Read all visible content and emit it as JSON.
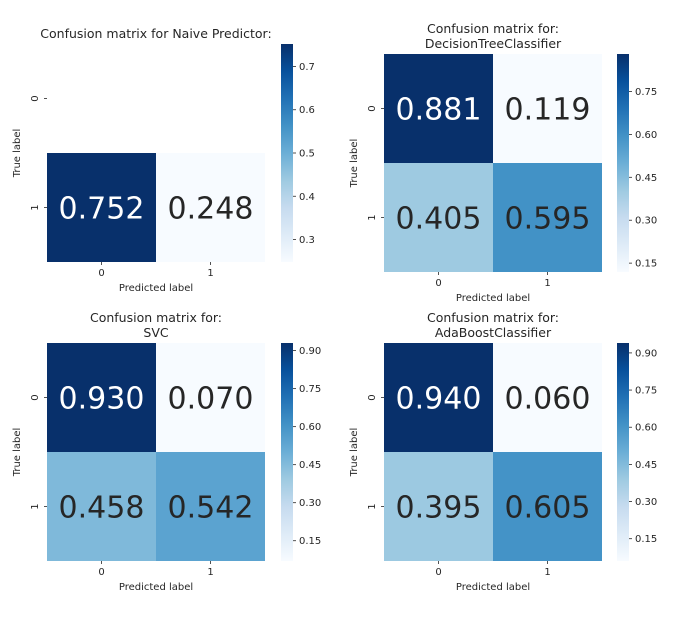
{
  "chart_data": [
    {
      "type": "heatmap",
      "title": "Confusion matrix for Naive Predictor:",
      "xlabel": "Predicted label",
      "ylabel": "True label",
      "x_ticks": [
        "0",
        "1"
      ],
      "y_ticks": [
        "0",
        "1"
      ],
      "cells": [
        [
          null,
          null
        ],
        [
          "0.752",
          "0.248"
        ]
      ],
      "values": [
        [
          null,
          null
        ],
        [
          0.752,
          0.248
        ]
      ],
      "colorbar": {
        "min": 0.248,
        "max": 0.752,
        "ticks": [
          "0.7",
          "0.6",
          "0.5",
          "0.4",
          "0.3"
        ],
        "tick_values": [
          0.7,
          0.6,
          0.5,
          0.4,
          0.3
        ]
      },
      "colormap": "Blues"
    },
    {
      "type": "heatmap",
      "title": "Confusion matrix for:\nDecisionTreeClassifier",
      "xlabel": "Predicted label",
      "ylabel": "True label",
      "x_ticks": [
        "0",
        "1"
      ],
      "y_ticks": [
        "0",
        "1"
      ],
      "cells": [
        [
          "0.881",
          "0.119"
        ],
        [
          "0.405",
          "0.595"
        ]
      ],
      "values": [
        [
          0.881,
          0.119
        ],
        [
          0.405,
          0.595
        ]
      ],
      "colorbar": {
        "min": 0.119,
        "max": 0.881,
        "ticks": [
          "0.75",
          "0.60",
          "0.45",
          "0.30",
          "0.15"
        ],
        "tick_values": [
          0.75,
          0.6,
          0.45,
          0.3,
          0.15
        ]
      },
      "colormap": "Blues"
    },
    {
      "type": "heatmap",
      "title": "Confusion matrix for:\nSVC",
      "xlabel": "Predicted label",
      "ylabel": "True label",
      "x_ticks": [
        "0",
        "1"
      ],
      "y_ticks": [
        "0",
        "1"
      ],
      "cells": [
        [
          "0.930",
          "0.070"
        ],
        [
          "0.458",
          "0.542"
        ]
      ],
      "values": [
        [
          0.93,
          0.07
        ],
        [
          0.458,
          0.542
        ]
      ],
      "colorbar": {
        "min": 0.07,
        "max": 0.93,
        "ticks": [
          "0.90",
          "0.75",
          "0.60",
          "0.45",
          "0.30",
          "0.15"
        ],
        "tick_values": [
          0.9,
          0.75,
          0.6,
          0.45,
          0.3,
          0.15
        ]
      },
      "colormap": "Blues"
    },
    {
      "type": "heatmap",
      "title": "Confusion matrix for:\nAdaBoostClassifier",
      "xlabel": "Predicted label",
      "ylabel": "True label",
      "x_ticks": [
        "0",
        "1"
      ],
      "y_ticks": [
        "0",
        "1"
      ],
      "cells": [
        [
          "0.940",
          "0.060"
        ],
        [
          "0.395",
          "0.605"
        ]
      ],
      "values": [
        [
          0.94,
          0.06
        ],
        [
          0.395,
          0.605
        ]
      ],
      "colorbar": {
        "min": 0.06,
        "max": 0.94,
        "ticks": [
          "0.90",
          "0.75",
          "0.60",
          "0.45",
          "0.30",
          "0.15"
        ],
        "tick_values": [
          0.9,
          0.75,
          0.6,
          0.45,
          0.3,
          0.15
        ]
      },
      "colormap": "Blues"
    }
  ]
}
